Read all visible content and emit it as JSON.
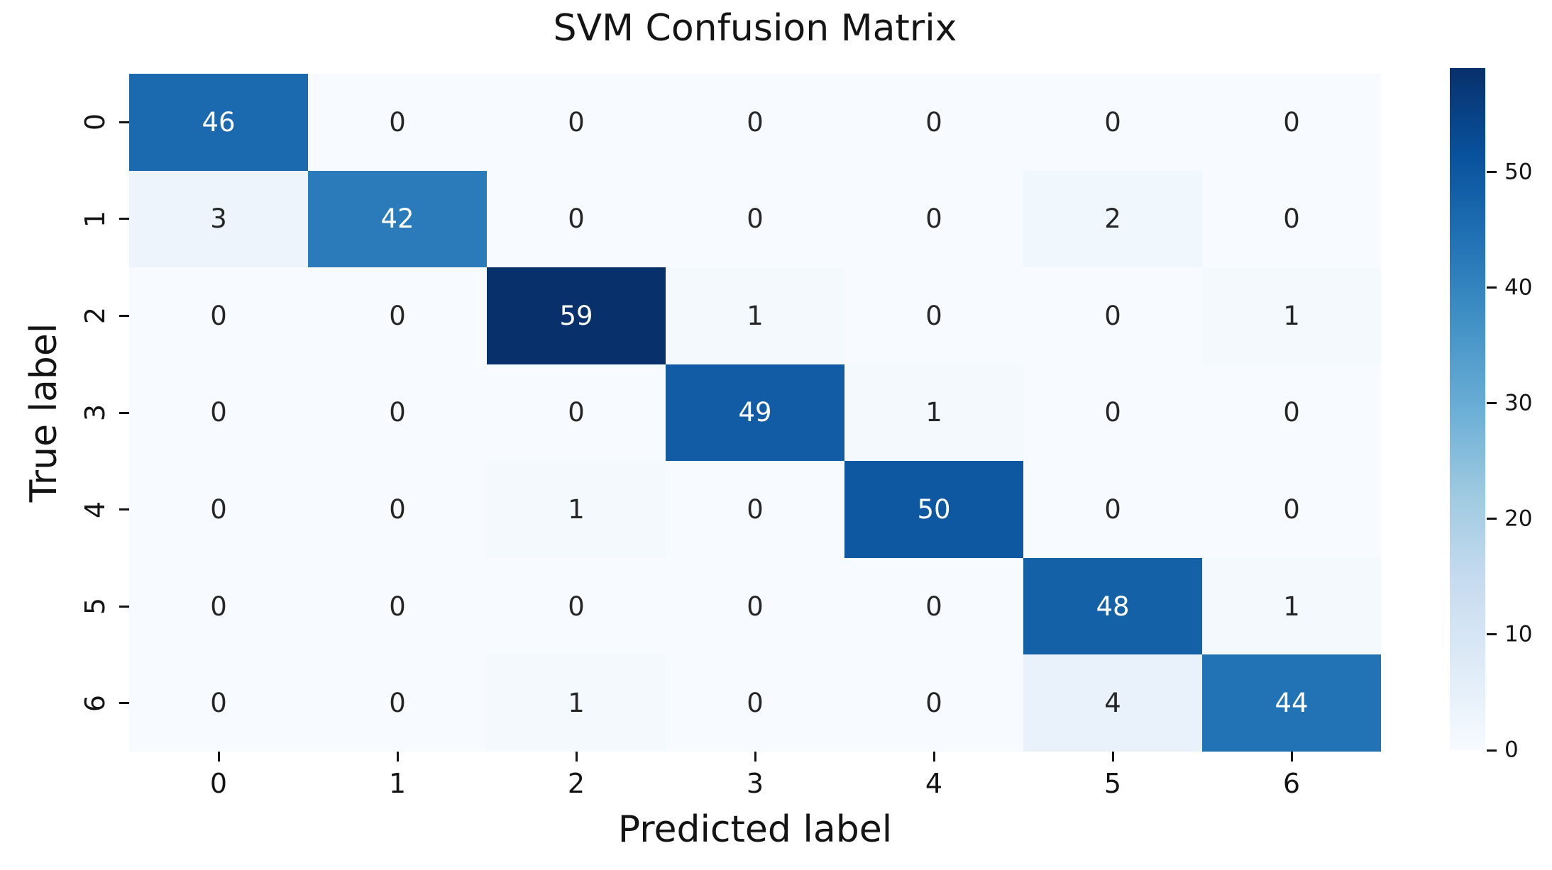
{
  "chart_data": {
    "type": "heatmap",
    "title": "SVM Confusion Matrix",
    "xlabel": "Predicted label",
    "ylabel": "True label",
    "x_tick_labels": [
      "0",
      "1",
      "2",
      "3",
      "4",
      "5",
      "6"
    ],
    "y_tick_labels": [
      "0",
      "1",
      "2",
      "3",
      "4",
      "5",
      "6"
    ],
    "matrix": [
      [
        46,
        0,
        0,
        0,
        0,
        0,
        0
      ],
      [
        3,
        42,
        0,
        0,
        0,
        2,
        0
      ],
      [
        0,
        0,
        59,
        1,
        0,
        0,
        1
      ],
      [
        0,
        0,
        0,
        49,
        1,
        0,
        0
      ],
      [
        0,
        0,
        1,
        0,
        50,
        0,
        0
      ],
      [
        0,
        0,
        0,
        0,
        0,
        48,
        1
      ],
      [
        0,
        0,
        1,
        0,
        0,
        4,
        44
      ]
    ],
    "vmin": 0,
    "vmax": 59,
    "colorbar_ticks": [
      0,
      10,
      20,
      30,
      40,
      50
    ],
    "legend_position": "right-colorbar",
    "grid": false,
    "colormap": {
      "name": "Blues",
      "anchors": [
        [
          0.0,
          "#f7fbff"
        ],
        [
          0.125,
          "#deebf7"
        ],
        [
          0.25,
          "#c6dbef"
        ],
        [
          0.375,
          "#9ecae1"
        ],
        [
          0.5,
          "#6baed6"
        ],
        [
          0.625,
          "#4292c6"
        ],
        [
          0.75,
          "#2171b5"
        ],
        [
          0.875,
          "#08519c"
        ],
        [
          1.0,
          "#08306b"
        ]
      ]
    },
    "annotation_color_on_dark": "#ffffff",
    "annotation_color_on_light": "#262626"
  }
}
